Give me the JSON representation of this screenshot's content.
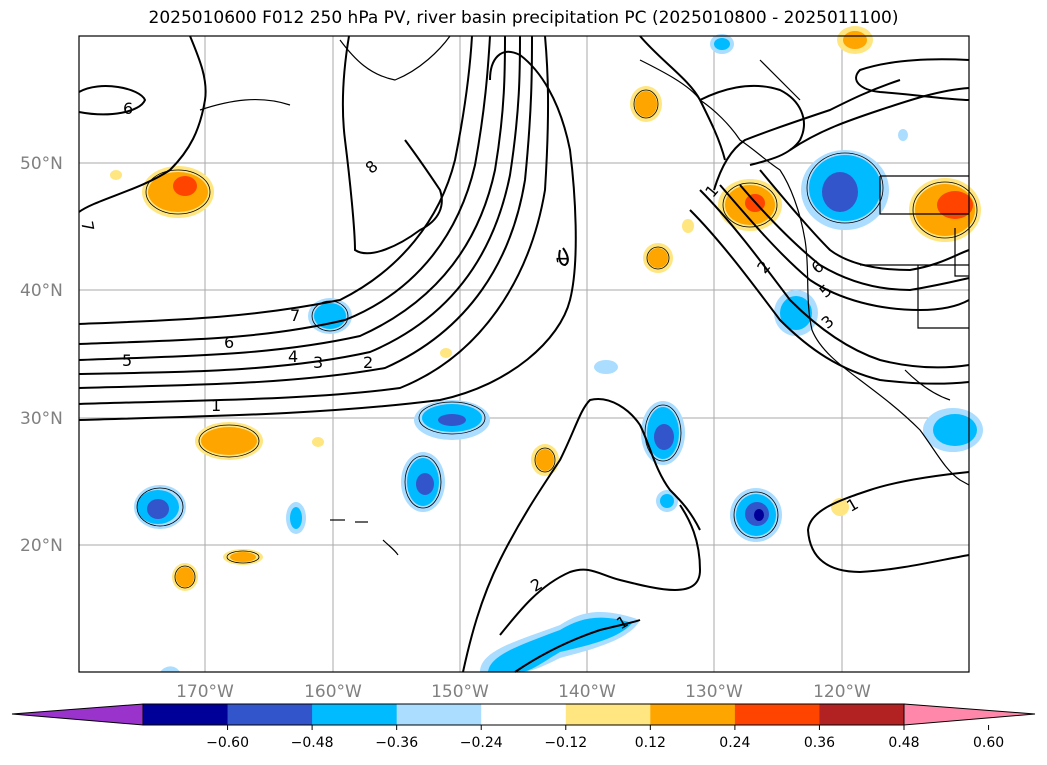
{
  "title": "2025010600 F012 250 hPa PV, river basin precipitation PC (2025010800 - 2025011100)",
  "lat_labels": [
    "50°N",
    "40°N",
    "30°N",
    "20°N"
  ],
  "lon_labels": [
    "170°W",
    "160°W",
    "150°W",
    "140°W",
    "130°W",
    "120°W"
  ],
  "contour_labels": [
    "6",
    "8",
    "7",
    "7",
    "6",
    "5",
    "4",
    "3",
    "2",
    "1",
    "1",
    "2",
    "1",
    "1",
    "2",
    "6",
    "5",
    "3",
    "1"
  ],
  "colorbar": {
    "colors": [
      "#9933cc",
      "#000099",
      "#3355cc",
      "#00bbff",
      "#aaddff",
      "#ffffff",
      "#ffe680",
      "#ffa500",
      "#ff4400",
      "#b22222",
      "#ff88aa"
    ],
    "ticks": [
      "−0.60",
      "−0.48",
      "−0.36",
      "−0.24",
      "−0.12",
      "0.12",
      "0.24",
      "0.36",
      "0.48",
      "0.60"
    ]
  }
}
